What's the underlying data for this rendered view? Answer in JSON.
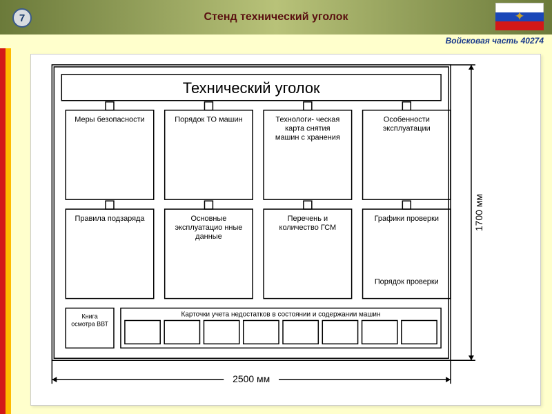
{
  "header": {
    "page_number": "7",
    "title": "Стенд технический уголок",
    "unit_label": "Войсковая часть 40274"
  },
  "flag": {
    "stripes": [
      "#ffffff",
      "#1a47b8",
      "#d31818"
    ],
    "emblem_color": "#c9a227"
  },
  "colors": {
    "header_gradient_edge": "#6b7a3a",
    "header_gradient_mid": "#b8c279",
    "page_bg": "#ffffcc",
    "diagram_bg": "#ffffff",
    "stroke": "#000000",
    "label_text": "#000000",
    "red_stripe": "#d31818",
    "orange_stripe": "#ffbb00",
    "unit_label_color": "#1a3a8a"
  },
  "diagram": {
    "title_box": {
      "text": "Технический уголок",
      "fontsize": 22
    },
    "width_label": "2500 мм",
    "height_label": "1700 мм",
    "dimension_fontsize": 14,
    "panel_fontsize": 11,
    "small_fontsize": 9,
    "stroke_width": 1.5,
    "row1": [
      "Меры безопасности",
      "Порядок ТО машин",
      "Технологи-\nческая карта снятия машин с хранения",
      "Особенности эксплуатации"
    ],
    "row2": [
      "Правила подзаряда",
      "Основные эксплуатацио нные данные",
      "Перечень и количество ГСМ",
      "Графики проверки"
    ],
    "row2_sublabel": "Порядок проверки",
    "bottom_small_box": "Книга осмотра ВВТ",
    "bottom_wide_label": "Карточки учета недостатков в состоянии и содержании машин",
    "bottom_small_count": 8
  }
}
